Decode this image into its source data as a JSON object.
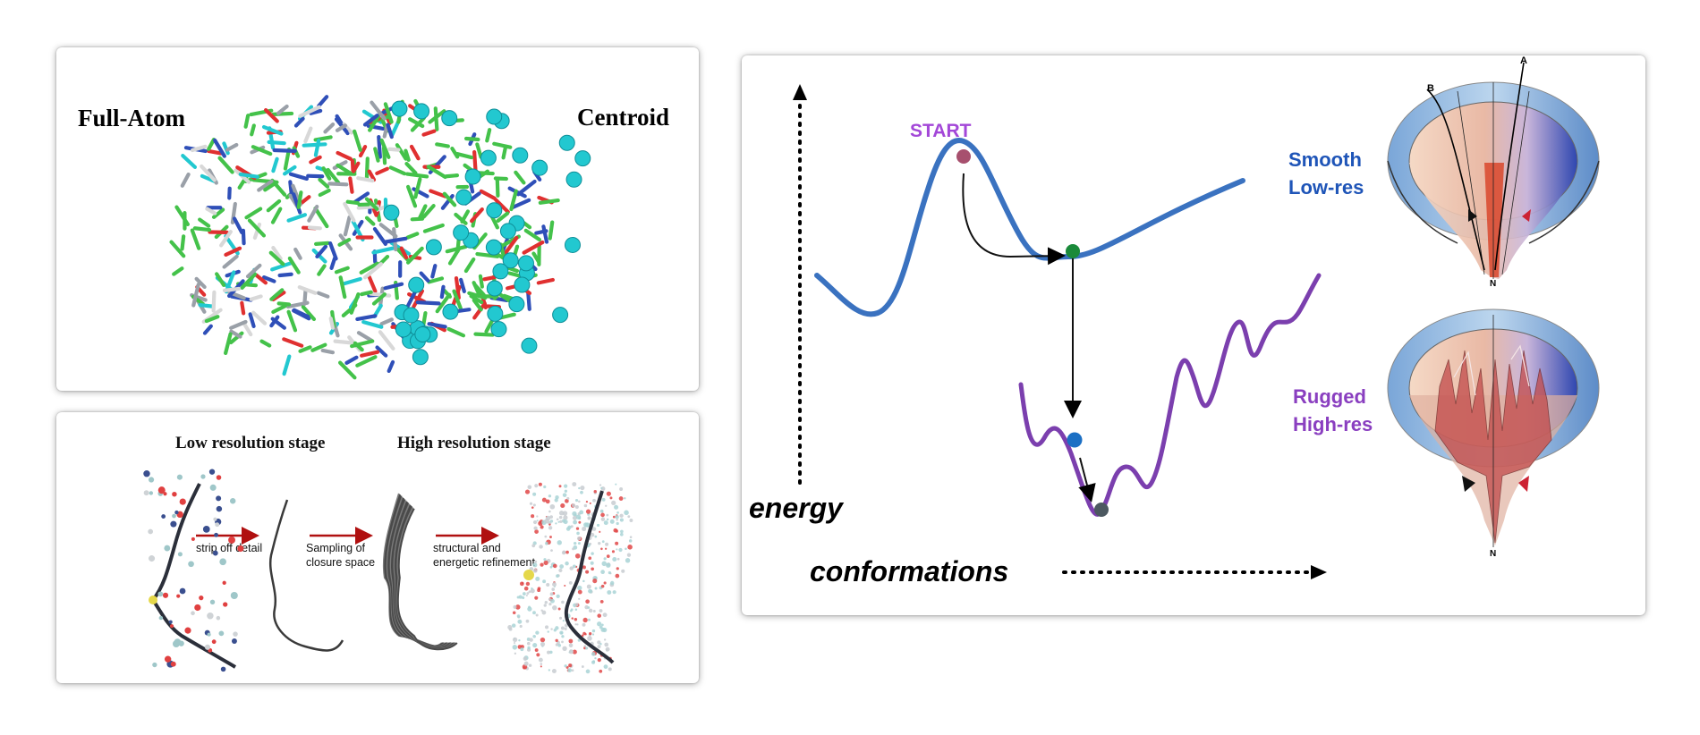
{
  "protein_panel": {
    "left_label": "Full-Atom",
    "right_label": "Centroid"
  },
  "pipeline_panel": {
    "stage_low": "Low resolution stage",
    "stage_high": "High resolution stage",
    "step1": "strip off detail",
    "step2_line1": "Sampling of",
    "step2_line2": "closure space",
    "step3_line1": "structural and",
    "step3_line2": "energetic refinement"
  },
  "landscape_panel": {
    "start_label": "START",
    "y_axis_label": "energy",
    "x_axis_label": "conformations",
    "smooth_line1": "Smooth",
    "smooth_line2": "Low-res",
    "rugged_line1": "Rugged",
    "rugged_line2": "High-res",
    "funnel_label_a": "A",
    "funnel_label_b": "B",
    "funnel_label_n_top": "N",
    "funnel_label_n_bottom": "N"
  },
  "colors": {
    "smooth_curve": "#3a72c0",
    "rugged_curve": "#7b3fae",
    "start_text": "#a347d8",
    "smooth_text": "#1f55b8",
    "rugged_text": "#8a3fc0",
    "carbon_green": "#44c24a",
    "centroid_cyan": "#22c8d0"
  }
}
